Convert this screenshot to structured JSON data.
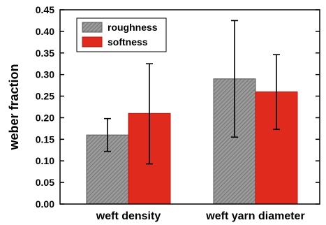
{
  "chart_data": {
    "type": "bar",
    "categories": [
      "weft density",
      "weft yarn diameter"
    ],
    "series": [
      {
        "name": "roughness",
        "values": [
          0.16,
          0.29
        ],
        "error_low": [
          0.122,
          0.155
        ],
        "error_high": [
          0.198,
          0.425
        ],
        "color": "#8c8c8c",
        "pattern": "diagonal-hatch"
      },
      {
        "name": "softness",
        "values": [
          0.21,
          0.26
        ],
        "error_low": [
          0.093,
          0.173
        ],
        "error_high": [
          0.325,
          0.346
        ],
        "color": "#e02a1d",
        "pattern": "solid"
      }
    ],
    "ylabel": "weber fraction",
    "xlabel": "",
    "ylim": [
      0.0,
      0.45
    ],
    "yticks": [
      "0.00",
      "0.05",
      "0.10",
      "0.15",
      "0.20",
      "0.25",
      "0.30",
      "0.35",
      "0.40",
      "0.45"
    ],
    "legend_position": "top-left",
    "grid": false
  }
}
